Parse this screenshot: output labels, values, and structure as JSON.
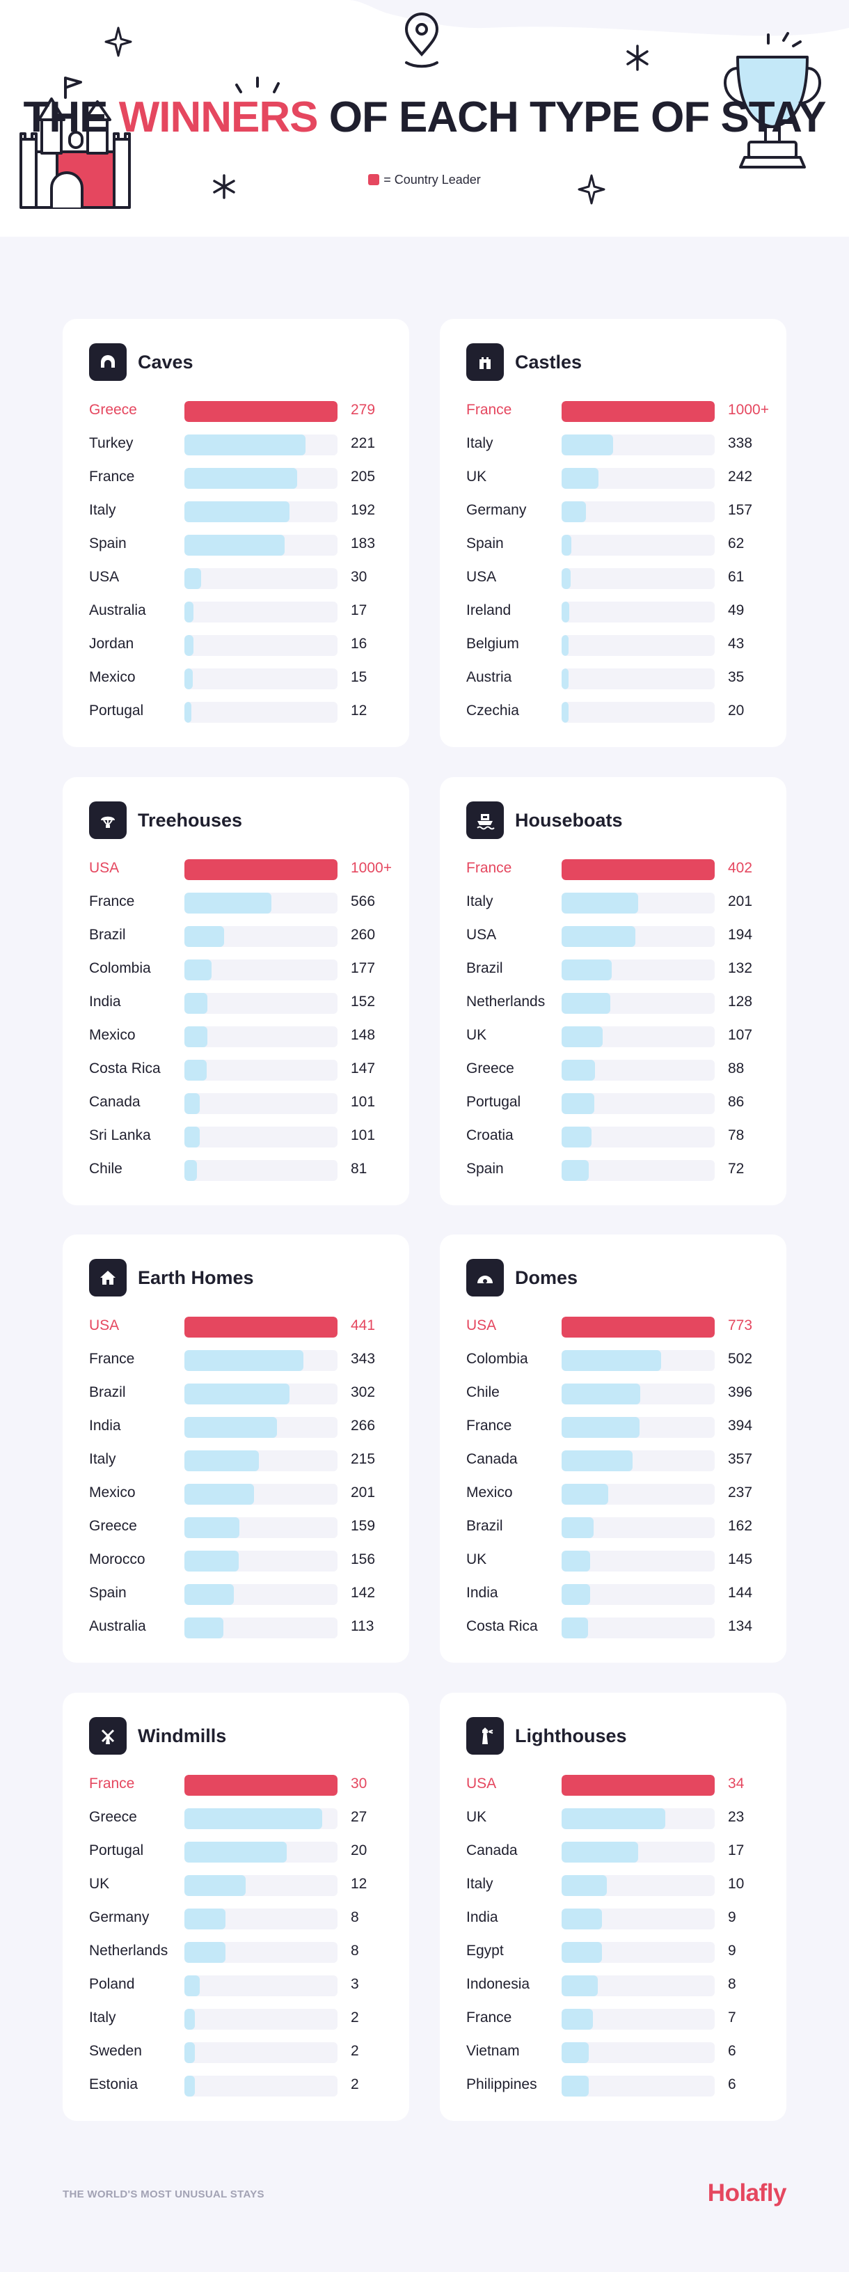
{
  "header": {
    "title_pre": "THE",
    "title_accent": "WINNERS",
    "title_post": "OF EACH TYPE OF STAY",
    "legend_label": "= Country Leader"
  },
  "colors": {
    "accent": "#e5475f",
    "bar": "#c4e8f8",
    "track": "#f3f3f9",
    "text": "#1f1f2e",
    "background": "#f5f5fb"
  },
  "chart_data": [
    {
      "type": "bar",
      "orientation": "horizontal",
      "icon": "cave-icon",
      "title": "Caves",
      "categories": [
        "Greece",
        "Turkey",
        "France",
        "Italy",
        "Spain",
        "USA",
        "Australia",
        "Jordan",
        "Mexico",
        "Portugal"
      ],
      "values": [
        279,
        221,
        205,
        192,
        183,
        30,
        17,
        16,
        15,
        12
      ],
      "labels": [
        "279",
        "221",
        "205",
        "192",
        "183",
        "30",
        "17",
        "16",
        "15",
        "12"
      ],
      "leader": "Greece",
      "xlim": [
        0,
        279
      ]
    },
    {
      "type": "bar",
      "orientation": "horizontal",
      "icon": "castle-icon",
      "title": "Castles",
      "categories": [
        "France",
        "Italy",
        "UK",
        "Germany",
        "Spain",
        "USA",
        "Ireland",
        "Belgium",
        "Austria",
        "Czechia"
      ],
      "values": [
        1000,
        338,
        242,
        157,
        62,
        61,
        49,
        43,
        35,
        20
      ],
      "labels": [
        "1000+",
        "338",
        "242",
        "157",
        "62",
        "61",
        "49",
        "43",
        "35",
        "20"
      ],
      "leader": "France",
      "xlim": [
        0,
        1000
      ]
    },
    {
      "type": "bar",
      "orientation": "horizontal",
      "icon": "treehouse-icon",
      "title": "Treehouses",
      "categories": [
        "USA",
        "France",
        "Brazil",
        "Colombia",
        "India",
        "Mexico",
        "Costa Rica",
        "Canada",
        "Sri Lanka",
        "Chile"
      ],
      "values": [
        1000,
        566,
        260,
        177,
        152,
        148,
        147,
        101,
        101,
        81
      ],
      "labels": [
        "1000+",
        "566",
        "260",
        "177",
        "152",
        "148",
        "147",
        "101",
        "101",
        "81"
      ],
      "leader": "USA",
      "xlim": [
        0,
        1000
      ]
    },
    {
      "type": "bar",
      "orientation": "horizontal",
      "icon": "houseboat-icon",
      "title": "Houseboats",
      "categories": [
        "France",
        "Italy",
        "USA",
        "Brazil",
        "Netherlands",
        "UK",
        "Greece",
        "Portugal",
        "Croatia",
        "Spain"
      ],
      "values": [
        402,
        201,
        194,
        132,
        128,
        107,
        88,
        86,
        78,
        72
      ],
      "labels": [
        "402",
        "201",
        "194",
        "132",
        "128",
        "107",
        "88",
        "86",
        "78",
        "72"
      ],
      "leader": "France",
      "xlim": [
        0,
        402
      ]
    },
    {
      "type": "bar",
      "orientation": "horizontal",
      "icon": "earth-home-icon",
      "title": "Earth Homes",
      "categories": [
        "USA",
        "France",
        "Brazil",
        "India",
        "Italy",
        "Mexico",
        "Greece",
        "Morocco",
        "Spain",
        "Australia"
      ],
      "values": [
        441,
        343,
        302,
        266,
        215,
        201,
        159,
        156,
        142,
        113
      ],
      "labels": [
        "441",
        "343",
        "302",
        "266",
        "215",
        "201",
        "159",
        "156",
        "142",
        "113"
      ],
      "leader": "USA",
      "xlim": [
        0,
        441
      ]
    },
    {
      "type": "bar",
      "orientation": "horizontal",
      "icon": "dome-icon",
      "title": "Domes",
      "categories": [
        "USA",
        "Colombia",
        "Chile",
        "France",
        "Canada",
        "Mexico",
        "Brazil",
        "UK",
        "India",
        "Costa Rica"
      ],
      "values": [
        773,
        502,
        396,
        394,
        357,
        237,
        162,
        145,
        144,
        134
      ],
      "labels": [
        "773",
        "502",
        "396",
        "394",
        "357",
        "237",
        "162",
        "145",
        "144",
        "134"
      ],
      "leader": "USA",
      "xlim": [
        0,
        773
      ]
    },
    {
      "type": "bar",
      "orientation": "horizontal",
      "icon": "windmill-icon",
      "title": "Windmills",
      "categories": [
        "France",
        "Greece",
        "Portugal",
        "UK",
        "Germany",
        "Netherlands",
        "Poland",
        "Italy",
        "Sweden",
        "Estonia"
      ],
      "values": [
        30,
        27,
        20,
        12,
        8,
        8,
        3,
        2,
        2,
        2
      ],
      "labels": [
        "30",
        "27",
        "20",
        "12",
        "8",
        "8",
        "3",
        "2",
        "2",
        "2"
      ],
      "leader": "France",
      "xlim": [
        0,
        30
      ]
    },
    {
      "type": "bar",
      "orientation": "horizontal",
      "icon": "lighthouse-icon",
      "title": "Lighthouses",
      "categories": [
        "USA",
        "UK",
        "Canada",
        "Italy",
        "India",
        "Egypt",
        "Indonesia",
        "France",
        "Vietnam",
        "Philippines"
      ],
      "values": [
        34,
        23,
        17,
        10,
        9,
        9,
        8,
        7,
        6,
        6
      ],
      "labels": [
        "34",
        "23",
        "17",
        "10",
        "9",
        "9",
        "8",
        "7",
        "6",
        "6"
      ],
      "leader": "USA",
      "xlim": [
        0,
        34
      ]
    }
  ],
  "footer": {
    "left_text": "THE WORLD'S MOST UNUSUAL STAYS",
    "logo_text": "Holafly"
  }
}
